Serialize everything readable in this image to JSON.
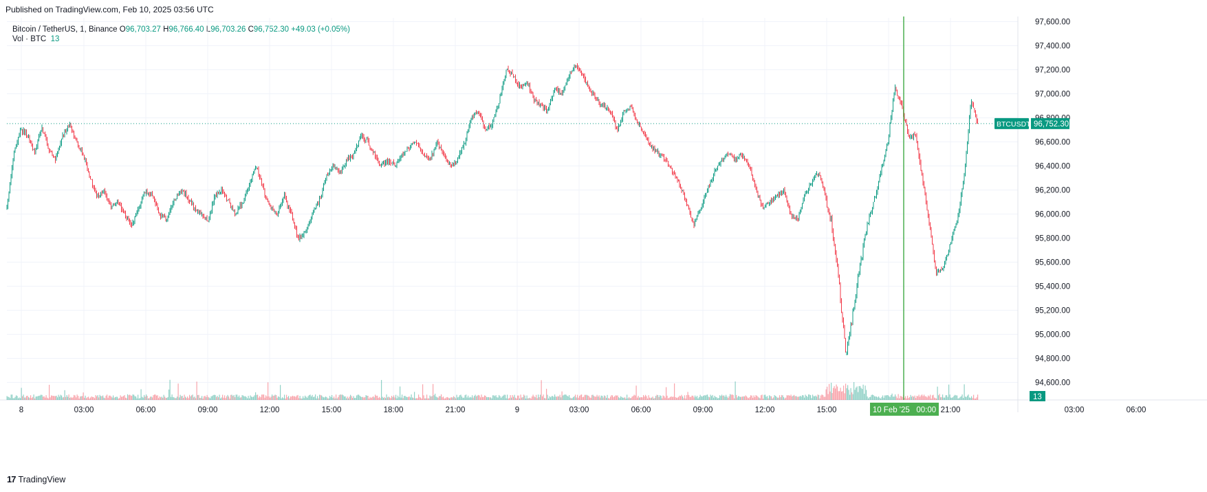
{
  "header": {
    "published": "Published on TradingView.com, Feb 10, 2025 03:56 UTC"
  },
  "legend": {
    "symbol": "Bitcoin / TetherUS, 1, Binance",
    "o_label": "O",
    "o": "96,703.27",
    "h_label": "H",
    "h": "96,766.40",
    "l_label": "L",
    "l": "96,703.26",
    "c_label": "C",
    "c": "96,752.30",
    "change": "+49.03 (+0.05%)",
    "vol_label": "Vol · BTC",
    "vol_value": "13"
  },
  "footer": {
    "brand": "TradingView",
    "logo": "17"
  },
  "colors": {
    "up": "#089981",
    "down": "#F23645",
    "grid": "#f0f3fa",
    "cursor": "#22ab94",
    "time_badge": "#4caf50"
  },
  "chart_data": {
    "type": "candlestick",
    "interval": "1",
    "ylim": [
      94500,
      97650
    ],
    "y_ticks": [
      97600,
      97400,
      97200,
      97000,
      96800,
      96600,
      96400,
      96200,
      96000,
      95800,
      95600,
      95400,
      95200,
      95000,
      94800,
      94600
    ],
    "y_tick_labels": [
      "97,600.00",
      "97,400.00",
      "97,200.00",
      "97,000.00",
      "96,800.00",
      "96,600.00",
      "96,400.00",
      "96,200.00",
      "96,000.00",
      "95,800.00",
      "95,600.00",
      "95,400.00",
      "95,200.00",
      "95,000.00",
      "94,800.00",
      "94,600.00"
    ],
    "x_ticks": [
      "8",
      "03:00",
      "06:00",
      "09:00",
      "12:00",
      "15:00",
      "18:00",
      "21:00",
      "9",
      "03:00",
      "06:00",
      "09:00",
      "12:00",
      "15:00",
      "18:00",
      "21:00",
      "03:00",
      "06:00"
    ],
    "path": [
      [
        0,
        96050
      ],
      [
        1,
        96500
      ],
      [
        2,
        96700
      ],
      [
        3,
        96650
      ],
      [
        4,
        96500
      ],
      [
        5,
        96720
      ],
      [
        6,
        96550
      ],
      [
        7,
        96450
      ],
      [
        8,
        96650
      ],
      [
        9,
        96750
      ],
      [
        10,
        96600
      ],
      [
        11,
        96500
      ],
      [
        12,
        96300
      ],
      [
        13,
        96150
      ],
      [
        14,
        96200
      ],
      [
        15,
        96050
      ],
      [
        16,
        96100
      ],
      [
        17,
        96000
      ],
      [
        18,
        95900
      ],
      [
        19,
        96050
      ],
      [
        20,
        96200
      ],
      [
        21,
        96150
      ],
      [
        22,
        96000
      ],
      [
        23,
        95950
      ],
      [
        24,
        96100
      ],
      [
        25,
        96200
      ],
      [
        26,
        96150
      ],
      [
        27,
        96050
      ],
      [
        28,
        96000
      ],
      [
        29,
        95950
      ],
      [
        30,
        96150
      ],
      [
        31,
        96200
      ],
      [
        32,
        96100
      ],
      [
        33,
        96000
      ],
      [
        34,
        96100
      ],
      [
        35,
        96250
      ],
      [
        36,
        96400
      ],
      [
        37,
        96200
      ],
      [
        38,
        96050
      ],
      [
        39,
        96000
      ],
      [
        40,
        96150
      ],
      [
        41,
        96000
      ],
      [
        42,
        95800
      ],
      [
        43,
        95850
      ],
      [
        44,
        96000
      ],
      [
        45,
        96100
      ],
      [
        46,
        96300
      ],
      [
        47,
        96400
      ],
      [
        48,
        96350
      ],
      [
        49,
        96450
      ],
      [
        50,
        96500
      ],
      [
        51,
        96650
      ],
      [
        52,
        96600
      ],
      [
        53,
        96500
      ],
      [
        54,
        96400
      ],
      [
        55,
        96450
      ],
      [
        56,
        96400
      ],
      [
        57,
        96500
      ],
      [
        58,
        96550
      ],
      [
        59,
        96600
      ],
      [
        60,
        96500
      ],
      [
        61,
        96450
      ],
      [
        62,
        96600
      ],
      [
        63,
        96500
      ],
      [
        64,
        96400
      ],
      [
        65,
        96450
      ],
      [
        66,
        96600
      ],
      [
        67,
        96800
      ],
      [
        68,
        96850
      ],
      [
        69,
        96700
      ],
      [
        70,
        96750
      ],
      [
        71,
        96950
      ],
      [
        72,
        97200
      ],
      [
        73,
        97150
      ],
      [
        74,
        97050
      ],
      [
        75,
        97100
      ],
      [
        76,
        96950
      ],
      [
        77,
        96900
      ],
      [
        78,
        96850
      ],
      [
        79,
        97050
      ],
      [
        80,
        97000
      ],
      [
        81,
        97150
      ],
      [
        82,
        97250
      ],
      [
        83,
        97150
      ],
      [
        84,
        97050
      ],
      [
        85,
        96950
      ],
      [
        86,
        96900
      ],
      [
        87,
        96850
      ],
      [
        88,
        96700
      ],
      [
        89,
        96850
      ],
      [
        90,
        96900
      ],
      [
        91,
        96750
      ],
      [
        92,
        96650
      ],
      [
        93,
        96550
      ],
      [
        94,
        96500
      ],
      [
        95,
        96450
      ],
      [
        96,
        96350
      ],
      [
        97,
        96250
      ],
      [
        98,
        96100
      ],
      [
        99,
        95900
      ],
      [
        100,
        96050
      ],
      [
        101,
        96200
      ],
      [
        102,
        96350
      ],
      [
        103,
        96450
      ],
      [
        104,
        96500
      ],
      [
        105,
        96450
      ],
      [
        106,
        96500
      ],
      [
        107,
        96400
      ],
      [
        108,
        96200
      ],
      [
        109,
        96050
      ],
      [
        110,
        96100
      ],
      [
        111,
        96150
      ],
      [
        112,
        96200
      ],
      [
        113,
        96000
      ],
      [
        114,
        95950
      ],
      [
        115,
        96150
      ],
      [
        116,
        96250
      ],
      [
        117,
        96350
      ],
      [
        118,
        96150
      ],
      [
        119,
        95900
      ],
      [
        120,
        95400
      ],
      [
        121,
        94800
      ],
      [
        122,
        95200
      ],
      [
        123,
        95550
      ],
      [
        124,
        95900
      ],
      [
        125,
        96100
      ],
      [
        126,
        96350
      ],
      [
        127,
        96600
      ],
      [
        128,
        97050
      ],
      [
        129,
        96900
      ],
      [
        130,
        96650
      ],
      [
        131,
        96650
      ],
      [
        132,
        96300
      ],
      [
        133,
        95900
      ],
      [
        134,
        95500
      ],
      [
        135,
        95550
      ],
      [
        136,
        95750
      ],
      [
        137,
        95950
      ],
      [
        138,
        96300
      ],
      [
        139,
        96950
      ],
      [
        140,
        96750
      ]
    ],
    "path_max_index": 140,
    "volume_ylim": [
      0,
      100
    ],
    "last_price_label": "96,752.30",
    "symbol_badge": "BTCUSDT",
    "volume_badge": "13",
    "cursor_time_label": "10 Feb '25   00:00"
  }
}
